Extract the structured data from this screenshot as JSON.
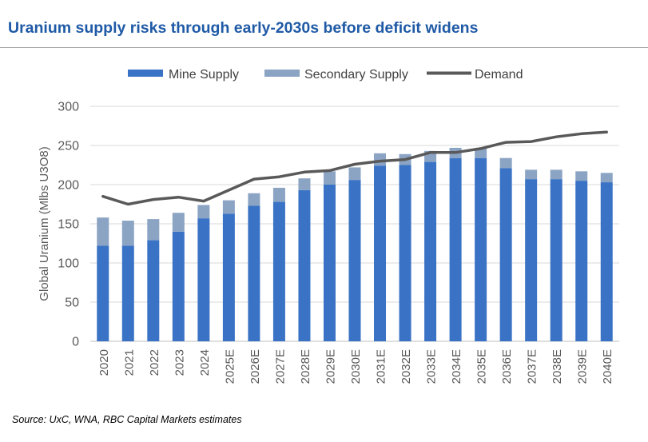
{
  "page": {
    "title": "Uranium supply risks through early-2030s before deficit widens",
    "source": "Source: UxC, WNA, RBC Capital Markets estimates"
  },
  "colors": {
    "title": "#1f5aa6",
    "mine_supply": "#3a73c5",
    "secondary_supply": "#8ba4c4",
    "demand": "#595959",
    "gridline": "#d9d9d9",
    "axis_text": "#595959"
  },
  "chart_data": {
    "type": "bar",
    "stacked": true,
    "title": "Uranium supply risks through early-2030s before deficit widens",
    "xlabel": "",
    "ylabel": "Global Uranium (Mlbs U3O8)",
    "ylim": [
      0,
      300
    ],
    "yticks": [
      0,
      50,
      100,
      150,
      200,
      250,
      300
    ],
    "grid": true,
    "legend_position": "top",
    "categories": [
      "2020",
      "2021",
      "2022",
      "2023",
      "2024",
      "2025E",
      "2026E",
      "2027E",
      "2028E",
      "2029E",
      "2030E",
      "2031E",
      "2032E",
      "2033E",
      "2034E",
      "2035E",
      "2036E",
      "2037E",
      "2038E",
      "2039E",
      "2040E"
    ],
    "series": [
      {
        "name": "Mine Supply",
        "type": "bar",
        "values": [
          122,
          122,
          129,
          140,
          157,
          163,
          173,
          178,
          193,
          200,
          206,
          224,
          225,
          229,
          234,
          234,
          221,
          207,
          207,
          205,
          203
        ]
      },
      {
        "name": "Secondary Supply",
        "type": "bar",
        "values": [
          36,
          32,
          27,
          24,
          17,
          17,
          16,
          18,
          15,
          17,
          16,
          16,
          14,
          14,
          13,
          13,
          13,
          12,
          12,
          12,
          12
        ]
      },
      {
        "name": "Demand",
        "type": "line",
        "values": [
          185,
          175,
          181,
          184,
          179,
          193,
          207,
          210,
          216,
          218,
          226,
          230,
          232,
          241,
          241,
          246,
          254,
          255,
          261,
          265,
          267
        ]
      }
    ]
  }
}
